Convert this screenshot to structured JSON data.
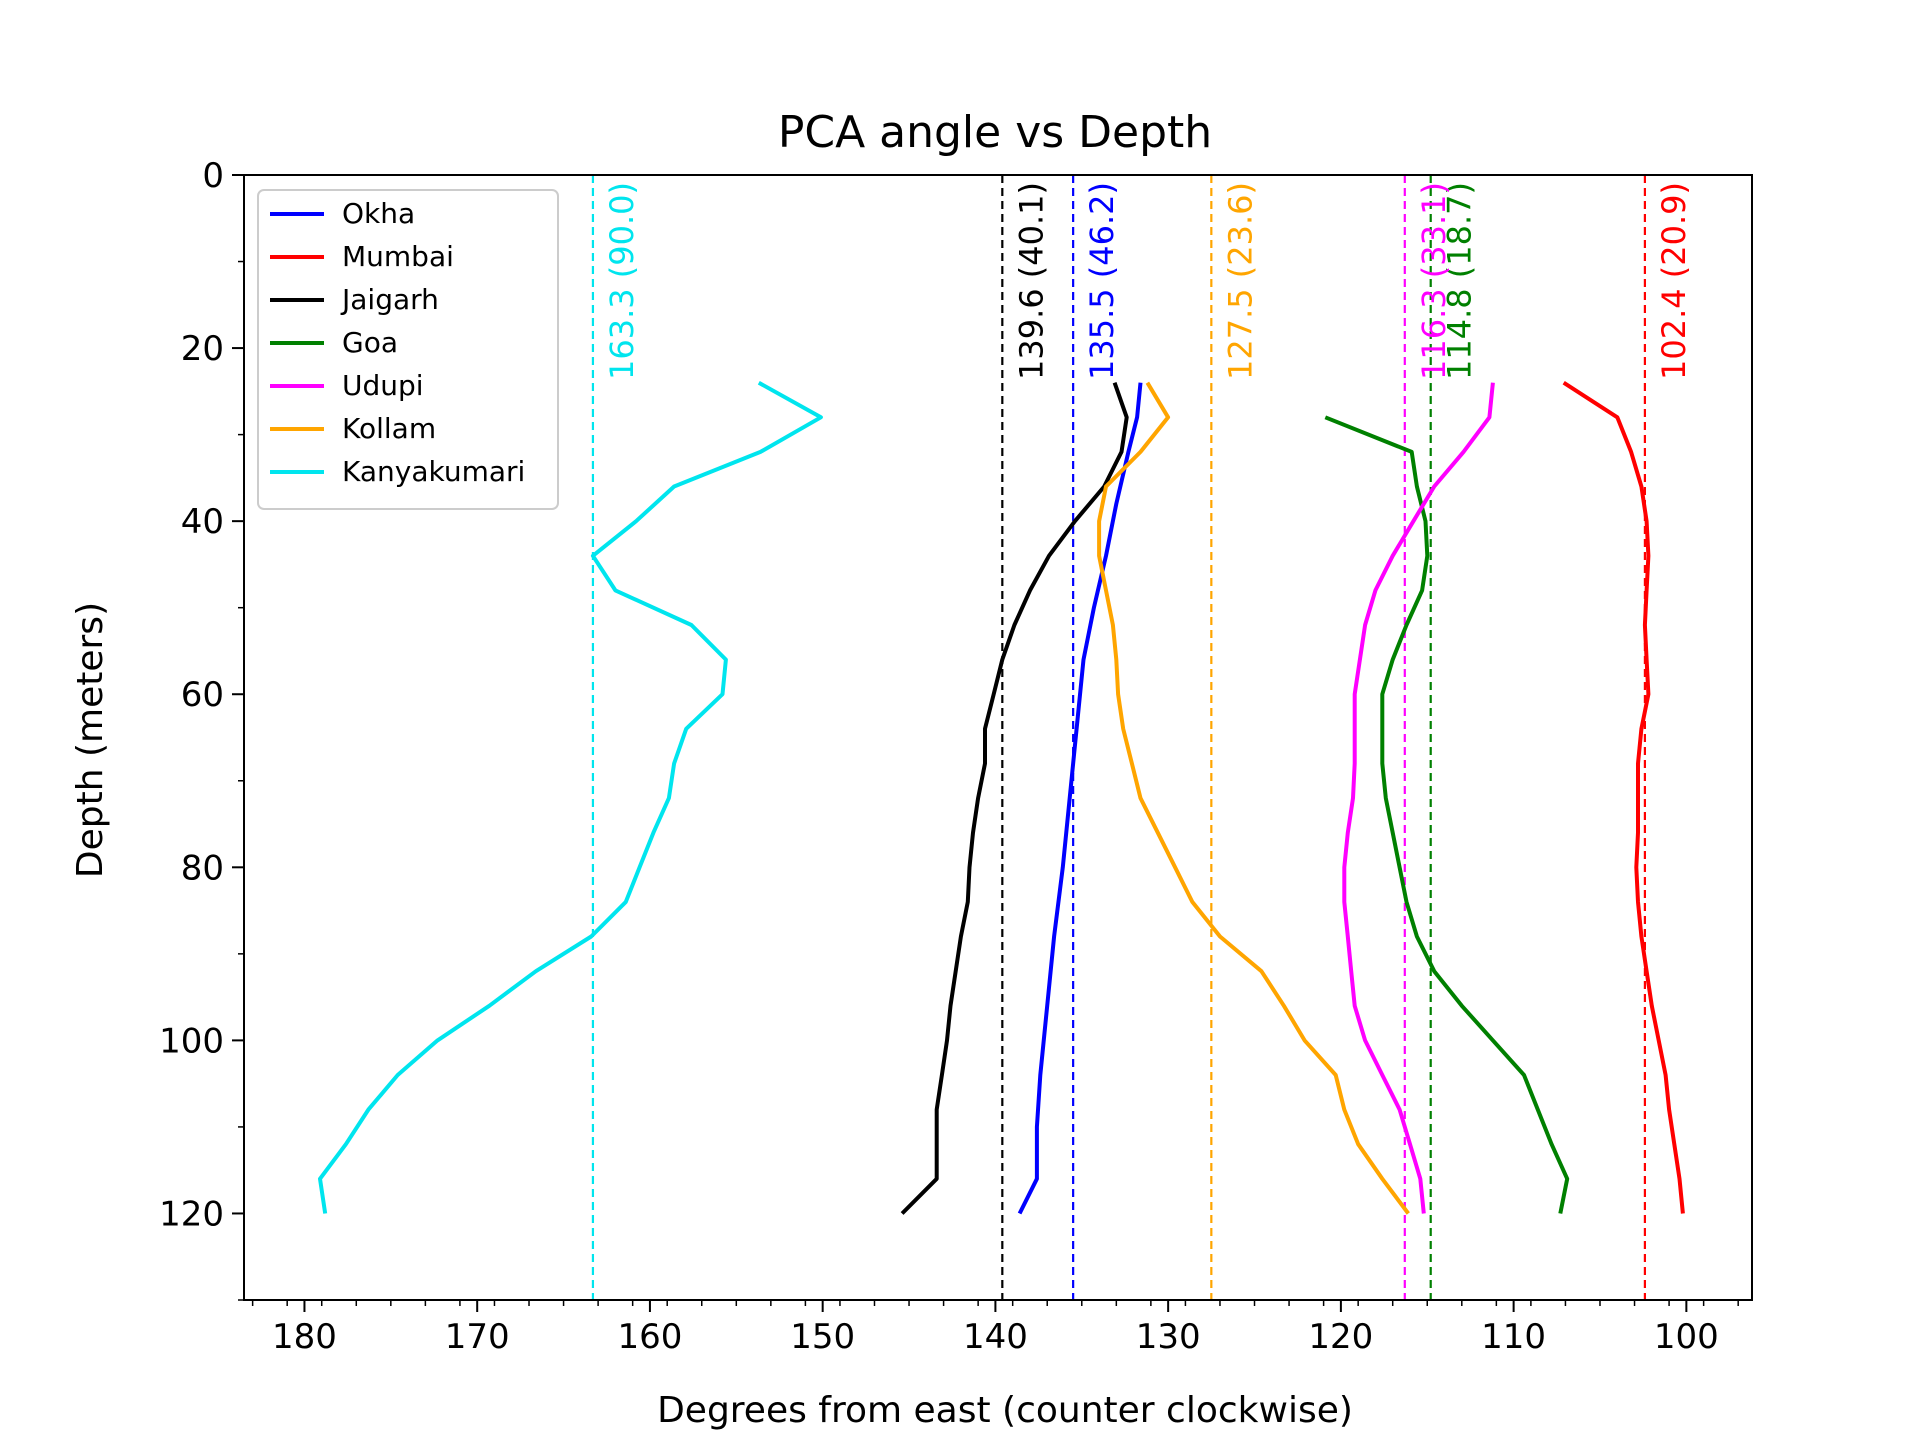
{
  "chart_data": {
    "type": "line",
    "title": "PCA angle vs Depth",
    "xlabel": "Degrees from east (counter clockwise)",
    "ylabel": "Depth (meters)",
    "xlim": [
      183.5,
      96.2
    ],
    "ylim": [
      130,
      0
    ],
    "x_axis_inverted": true,
    "y_axis_inverted": true,
    "xticks": [
      180,
      170,
      160,
      150,
      140,
      130,
      120,
      110,
      100
    ],
    "xtick_labels": [
      "180",
      "170",
      "160",
      "150",
      "140",
      "130",
      "120",
      "110",
      "100"
    ],
    "yticks": [
      0,
      20,
      40,
      60,
      80,
      100,
      120
    ],
    "ytick_labels": [
      "0",
      "20",
      "40",
      "60",
      "80",
      "100",
      "120"
    ],
    "y_minor_step": 10,
    "x_minor_step": 2,
    "grid": false,
    "legend_position": "top-left",
    "series": [
      {
        "name": "Okha",
        "color": "#0000ff",
        "mean_angle": 135.5,
        "annotation": "135.5 (46.2)",
        "points": [
          [
            131.6,
            24
          ],
          [
            131.8,
            28
          ],
          [
            132.3,
            32
          ],
          [
            133,
            38
          ],
          [
            133.6,
            44
          ],
          [
            134.3,
            50
          ],
          [
            134.9,
            56
          ],
          [
            135.3,
            64
          ],
          [
            135.7,
            72
          ],
          [
            136.1,
            80
          ],
          [
            136.6,
            88
          ],
          [
            137,
            96
          ],
          [
            137.4,
            104
          ],
          [
            137.6,
            110
          ],
          [
            137.6,
            116
          ],
          [
            138.6,
            120
          ]
        ]
      },
      {
        "name": "Mumbai",
        "color": "#ff0000",
        "mean_angle": 102.4,
        "annotation": "102.4 (20.9)",
        "points": [
          [
            107.1,
            24
          ],
          [
            104,
            28
          ],
          [
            103.2,
            32
          ],
          [
            102.6,
            36
          ],
          [
            102.3,
            40
          ],
          [
            102.2,
            44
          ],
          [
            102.3,
            48
          ],
          [
            102.4,
            52
          ],
          [
            102.3,
            56
          ],
          [
            102.2,
            60
          ],
          [
            102.6,
            64
          ],
          [
            102.8,
            68
          ],
          [
            102.8,
            72
          ],
          [
            102.8,
            76
          ],
          [
            102.9,
            80
          ],
          [
            102.8,
            84
          ],
          [
            102.6,
            88
          ],
          [
            102.3,
            92
          ],
          [
            102.0,
            96
          ],
          [
            101.6,
            100
          ],
          [
            101.2,
            104
          ],
          [
            101.0,
            108
          ],
          [
            100.7,
            112
          ],
          [
            100.4,
            116
          ],
          [
            100.2,
            120
          ]
        ]
      },
      {
        "name": "Jaigarh",
        "color": "#000000",
        "mean_angle": 139.6,
        "annotation": "139.6 (40.1)",
        "points": [
          [
            133.1,
            24
          ],
          [
            132.4,
            28
          ],
          [
            132.7,
            32
          ],
          [
            133.7,
            36
          ],
          [
            135.4,
            40
          ],
          [
            136.9,
            44
          ],
          [
            138.0,
            48
          ],
          [
            138.9,
            52
          ],
          [
            139.6,
            56
          ],
          [
            140.1,
            60
          ],
          [
            140.6,
            64
          ],
          [
            140.6,
            68
          ],
          [
            141.0,
            72
          ],
          [
            141.3,
            76
          ],
          [
            141.5,
            80
          ],
          [
            141.6,
            84
          ],
          [
            142.0,
            88
          ],
          [
            142.3,
            92
          ],
          [
            142.6,
            96
          ],
          [
            142.8,
            100
          ],
          [
            143.1,
            104
          ],
          [
            143.4,
            108
          ],
          [
            143.4,
            112
          ],
          [
            143.4,
            116
          ],
          [
            145.4,
            120
          ]
        ]
      },
      {
        "name": "Goa",
        "color": "#008000",
        "mean_angle": 114.8,
        "annotation": "114.8 (18.7)",
        "points": [
          [
            120.9,
            28
          ],
          [
            115.9,
            32
          ],
          [
            115.6,
            36
          ],
          [
            115.1,
            40
          ],
          [
            115.0,
            44
          ],
          [
            115.3,
            48
          ],
          [
            116.2,
            52
          ],
          [
            117.0,
            56
          ],
          [
            117.6,
            60
          ],
          [
            117.6,
            64
          ],
          [
            117.6,
            68
          ],
          [
            117.4,
            72
          ],
          [
            117.0,
            76
          ],
          [
            116.6,
            80
          ],
          [
            116.2,
            84
          ],
          [
            115.6,
            88
          ],
          [
            114.6,
            92
          ],
          [
            113.0,
            96
          ],
          [
            111.2,
            100
          ],
          [
            109.4,
            104
          ],
          [
            108.6,
            108
          ],
          [
            107.8,
            112
          ],
          [
            106.9,
            116
          ],
          [
            107.3,
            120
          ]
        ]
      },
      {
        "name": "Udupi",
        "color": "#ff00ff",
        "mean_angle": 116.3,
        "annotation": "116.3 (33.1)",
        "points": [
          [
            111.2,
            24
          ],
          [
            111.4,
            28
          ],
          [
            112.9,
            32
          ],
          [
            114.6,
            36
          ],
          [
            115.8,
            40
          ],
          [
            117.0,
            44
          ],
          [
            118.0,
            48
          ],
          [
            118.6,
            52
          ],
          [
            118.9,
            56
          ],
          [
            119.2,
            60
          ],
          [
            119.2,
            64
          ],
          [
            119.2,
            68
          ],
          [
            119.3,
            72
          ],
          [
            119.6,
            76
          ],
          [
            119.8,
            80
          ],
          [
            119.8,
            84
          ],
          [
            119.6,
            88
          ],
          [
            119.4,
            92
          ],
          [
            119.2,
            96
          ],
          [
            118.6,
            100
          ],
          [
            117.6,
            104
          ],
          [
            116.6,
            108
          ],
          [
            116.0,
            112
          ],
          [
            115.4,
            116
          ],
          [
            115.2,
            120
          ]
        ]
      },
      {
        "name": "Kollam",
        "color": "#ffa500",
        "mean_angle": 127.5,
        "annotation": "127.5 (23.6)",
        "points": [
          [
            131.2,
            24
          ],
          [
            130.0,
            28
          ],
          [
            131.6,
            32
          ],
          [
            133.6,
            36
          ],
          [
            134.0,
            40
          ],
          [
            134.0,
            44
          ],
          [
            133.6,
            48
          ],
          [
            133.2,
            52
          ],
          [
            133.0,
            56
          ],
          [
            132.9,
            60
          ],
          [
            132.6,
            64
          ],
          [
            132.1,
            68
          ],
          [
            131.6,
            72
          ],
          [
            130.6,
            76
          ],
          [
            129.6,
            80
          ],
          [
            128.6,
            84
          ],
          [
            127.0,
            88
          ],
          [
            124.6,
            92
          ],
          [
            123.3,
            96
          ],
          [
            122.1,
            100
          ],
          [
            120.3,
            104
          ],
          [
            119.8,
            108
          ],
          [
            119.0,
            112
          ],
          [
            117.6,
            116
          ],
          [
            116.1,
            120
          ]
        ]
      },
      {
        "name": "Kanyakumari",
        "color": "#00e5ee",
        "mean_angle": 163.3,
        "annotation": "163.3 (90.0)",
        "points": [
          [
            153.7,
            24
          ],
          [
            150.1,
            28
          ],
          [
            153.6,
            32
          ],
          [
            158.6,
            36
          ],
          [
            160.8,
            40
          ],
          [
            163.3,
            44
          ],
          [
            162.0,
            48
          ],
          [
            157.6,
            52
          ],
          [
            155.6,
            56
          ],
          [
            155.8,
            60
          ],
          [
            157.9,
            64
          ],
          [
            158.6,
            68
          ],
          [
            158.9,
            72
          ],
          [
            159.8,
            76
          ],
          [
            160.6,
            80
          ],
          [
            161.4,
            84
          ],
          [
            163.4,
            88
          ],
          [
            166.6,
            92
          ],
          [
            169.3,
            96
          ],
          [
            172.3,
            100
          ],
          [
            174.6,
            104
          ],
          [
            176.3,
            108
          ],
          [
            177.6,
            112
          ],
          [
            179.1,
            116
          ],
          [
            178.8,
            120
          ]
        ]
      }
    ]
  }
}
